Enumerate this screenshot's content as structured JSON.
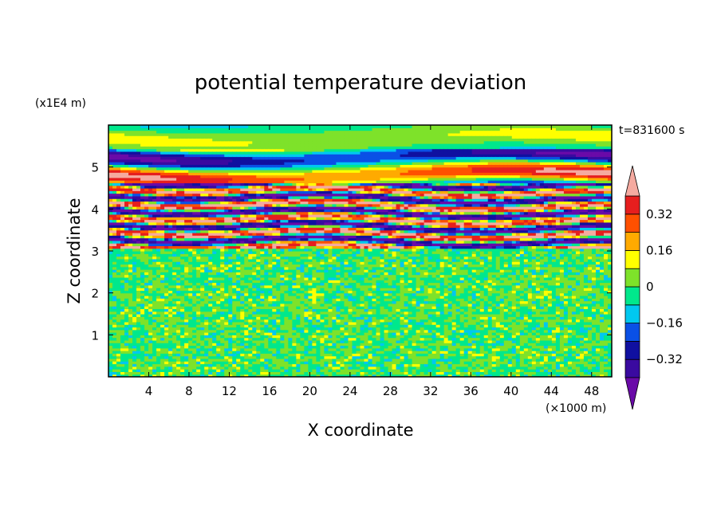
{
  "chart_data": {
    "type": "heatmap",
    "title": "potential temperature deviation",
    "xlabel": "X coordinate",
    "ylabel": "Z coordinate",
    "x_unit": "(×1000 m)",
    "y_unit": "(x1E4 m)",
    "time_label": "t=831600 s",
    "xlim": [
      0,
      50
    ],
    "ylim": [
      0,
      6
    ],
    "x_ticks": [
      "4",
      "8",
      "12",
      "16",
      "20",
      "24",
      "28",
      "32",
      "36",
      "40",
      "44",
      "48"
    ],
    "y_ticks": [
      "1",
      "2",
      "3",
      "4",
      "5"
    ],
    "x_tick_values": [
      4,
      8,
      12,
      16,
      20,
      24,
      28,
      32,
      36,
      40,
      44,
      48
    ],
    "y_tick_values": [
      1,
      2,
      3,
      4,
      5
    ],
    "colorbar": {
      "levels": [
        -0.4,
        -0.32,
        -0.24,
        -0.16,
        -0.08,
        0,
        0.08,
        0.16,
        0.24,
        0.32,
        0.4
      ],
      "labels": [
        "0.32",
        "0.16",
        "0",
        "−0.16",
        "−0.32"
      ],
      "label_values": [
        0.32,
        0.16,
        0,
        -0.16,
        -0.32
      ],
      "colors": [
        "#6a0aa8",
        "#3a0aa0",
        "#1010a0",
        "#0a50e6",
        "#00c8f0",
        "#00e88c",
        "#7ee22a",
        "#ffff00",
        "#ffaa00",
        "#ff5000",
        "#e61e1e",
        "#f5aaa0"
      ],
      "extend": "both"
    },
    "layers": [
      {
        "z_range": [
          0,
          3.05
        ],
        "pattern": "small-scale noise",
        "dominant": [
          -0.08,
          0.08
        ]
      },
      {
        "z_range": [
          3.05,
          4.6
        ],
        "pattern": "alternating strong bands",
        "dominant": [
          -0.4,
          0.4
        ]
      },
      {
        "z_range": [
          4.6,
          6
        ],
        "pattern": "smooth wave bands",
        "dominant": [
          -0.4,
          0.4
        ]
      }
    ]
  }
}
